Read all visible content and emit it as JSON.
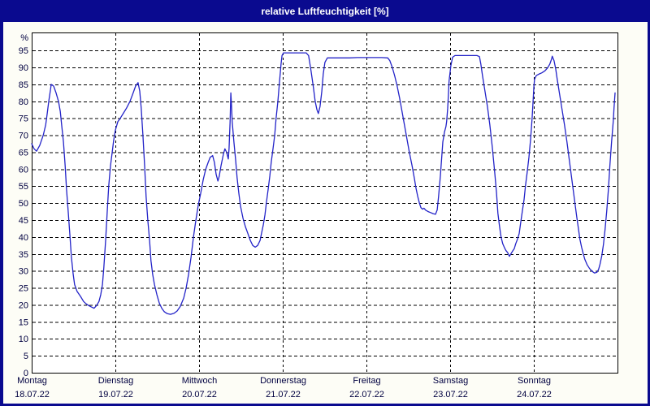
{
  "window": {
    "title": "relative Luftfeuchtigkeit [%]"
  },
  "colors": {
    "titlebar_bg": "#0a0a8f",
    "titlebar_text": "#ffffff",
    "window_border": "#0a0a8f",
    "content_bg": "#fdfdf6",
    "plot_bg": "#ffffff",
    "frame": "#000000",
    "grid": "#000000",
    "line": "#2323c8",
    "label": "#000040"
  },
  "chart_data": {
    "type": "line",
    "title": "relative Luftfeuchtigkeit [%]",
    "ylabel": "%",
    "ylim": [
      0,
      100.3
    ],
    "y_ticks": [
      0,
      5,
      10,
      15,
      20,
      25,
      30,
      35,
      40,
      45,
      50,
      55,
      60,
      65,
      70,
      75,
      80,
      85,
      90,
      95
    ],
    "x_hours_range": [
      0,
      168
    ],
    "grid": "dashed",
    "legend_position": "none",
    "days": [
      {
        "name": "Montag",
        "date": "18.07.22"
      },
      {
        "name": "Dienstag",
        "date": "19.07.22"
      },
      {
        "name": "Mittwoch",
        "date": "20.07.22"
      },
      {
        "name": "Donnerstag",
        "date": "21.07.22"
      },
      {
        "name": "Freitag",
        "date": "22.07.22"
      },
      {
        "name": "Samstag",
        "date": "23.07.22"
      },
      {
        "name": "Sonntag",
        "date": "24.07.22"
      }
    ],
    "series": [
      {
        "name": "relative Luftfeuchtigkeit",
        "points": [
          [
            0.0,
            67.5
          ],
          [
            0.7,
            66
          ],
          [
            1.4,
            65.3
          ],
          [
            2.3,
            67
          ],
          [
            3.3,
            70
          ],
          [
            4.0,
            73
          ],
          [
            4.4,
            76
          ],
          [
            4.9,
            80
          ],
          [
            5.4,
            83.5
          ],
          [
            5.6,
            85
          ],
          [
            6.3,
            84.5
          ],
          [
            7.0,
            82.5
          ],
          [
            7.7,
            80
          ],
          [
            8.2,
            77
          ],
          [
            8.6,
            73
          ],
          [
            9.1,
            68
          ],
          [
            9.6,
            61
          ],
          [
            10.0,
            54
          ],
          [
            10.5,
            47
          ],
          [
            11.0,
            40
          ],
          [
            11.4,
            34
          ],
          [
            11.9,
            29
          ],
          [
            12.3,
            26
          ],
          [
            13.0,
            24
          ],
          [
            14.0,
            22.5
          ],
          [
            14.9,
            21
          ],
          [
            15.6,
            20.3
          ],
          [
            16.5,
            19.7
          ],
          [
            17.5,
            19.2
          ],
          [
            17.9,
            19
          ],
          [
            18.6,
            19.8
          ],
          [
            19.3,
            21
          ],
          [
            19.8,
            23
          ],
          [
            20.3,
            26
          ],
          [
            20.7,
            31
          ],
          [
            21.2,
            39
          ],
          [
            21.7,
            48
          ],
          [
            22.1,
            55
          ],
          [
            22.6,
            61
          ],
          [
            23.1,
            65
          ],
          [
            23.5,
            68.5
          ],
          [
            24.0,
            71.5
          ],
          [
            24.7,
            74
          ],
          [
            25.4,
            75
          ],
          [
            26.3,
            76.5
          ],
          [
            27.2,
            78
          ],
          [
            28.2,
            80
          ],
          [
            29.1,
            82.5
          ],
          [
            29.8,
            84.5
          ],
          [
            30.5,
            85.5
          ],
          [
            31.0,
            83
          ],
          [
            31.4,
            78
          ],
          [
            31.9,
            70
          ],
          [
            32.4,
            61
          ],
          [
            32.8,
            52
          ],
          [
            33.3,
            45
          ],
          [
            33.8,
            39
          ],
          [
            34.2,
            33
          ],
          [
            34.7,
            29
          ],
          [
            35.2,
            26
          ],
          [
            35.9,
            23
          ],
          [
            36.6,
            20.5
          ],
          [
            37.3,
            19
          ],
          [
            38.0,
            18
          ],
          [
            38.9,
            17.4
          ],
          [
            39.8,
            17.2
          ],
          [
            40.8,
            17.5
          ],
          [
            41.7,
            18.2
          ],
          [
            42.6,
            19.5
          ],
          [
            43.6,
            22
          ],
          [
            44.3,
            25
          ],
          [
            45.0,
            29
          ],
          [
            45.7,
            34
          ],
          [
            46.4,
            40
          ],
          [
            47.1,
            45
          ],
          [
            47.8,
            49.5
          ],
          [
            48.5,
            53
          ],
          [
            49.2,
            57
          ],
          [
            49.9,
            60
          ],
          [
            50.6,
            62
          ],
          [
            51.2,
            63.5
          ],
          [
            51.9,
            64
          ],
          [
            52.4,
            62
          ],
          [
            52.9,
            58.5
          ],
          [
            53.4,
            56.5
          ],
          [
            53.8,
            58
          ],
          [
            54.3,
            61
          ],
          [
            55.0,
            64.5
          ],
          [
            55.4,
            66
          ],
          [
            55.9,
            65
          ],
          [
            56.4,
            63
          ],
          [
            56.6,
            66
          ],
          [
            56.9,
            74
          ],
          [
            57.1,
            82.5
          ],
          [
            57.3,
            79
          ],
          [
            57.5,
            74
          ],
          [
            58.0,
            68
          ],
          [
            58.5,
            62.5
          ],
          [
            58.9,
            57.5
          ],
          [
            59.4,
            53
          ],
          [
            59.9,
            49
          ],
          [
            60.6,
            45.5
          ],
          [
            61.3,
            43
          ],
          [
            62.0,
            41
          ],
          [
            62.7,
            39
          ],
          [
            63.4,
            37.5
          ],
          [
            64.1,
            37
          ],
          [
            64.8,
            37.5
          ],
          [
            65.5,
            39
          ],
          [
            65.9,
            41
          ],
          [
            66.4,
            43.5
          ],
          [
            66.9,
            46.5
          ],
          [
            67.3,
            50
          ],
          [
            67.8,
            54
          ],
          [
            68.3,
            58
          ],
          [
            68.7,
            62
          ],
          [
            69.2,
            66
          ],
          [
            69.7,
            70
          ],
          [
            70.1,
            75
          ],
          [
            70.6,
            80
          ],
          [
            71.1,
            86
          ],
          [
            71.5,
            91
          ],
          [
            71.8,
            93.5
          ],
          [
            72.2,
            94.3
          ],
          [
            73.6,
            94.3
          ],
          [
            75.3,
            94.3
          ],
          [
            77.1,
            94.3
          ],
          [
            78.7,
            94.3
          ],
          [
            79.4,
            93.5
          ],
          [
            80.1,
            89
          ],
          [
            80.8,
            84
          ],
          [
            81.3,
            80
          ],
          [
            81.8,
            77.5
          ],
          [
            82.2,
            76.4
          ],
          [
            82.7,
            78.5
          ],
          [
            83.2,
            83
          ],
          [
            83.6,
            88
          ],
          [
            84.1,
            91.5
          ],
          [
            84.8,
            92.8
          ],
          [
            86.4,
            92.8
          ],
          [
            88.8,
            92.8
          ],
          [
            91.1,
            92.8
          ],
          [
            93.4,
            92.9
          ],
          [
            95.8,
            92.9
          ],
          [
            98.1,
            92.9
          ],
          [
            100.4,
            92.9
          ],
          [
            102.1,
            92.8
          ],
          [
            102.7,
            92
          ],
          [
            103.4,
            90
          ],
          [
            104.1,
            87.5
          ],
          [
            104.8,
            84.5
          ],
          [
            105.5,
            81
          ],
          [
            106.2,
            77
          ],
          [
            106.9,
            73
          ],
          [
            107.6,
            69
          ],
          [
            108.3,
            65
          ],
          [
            109.1,
            61
          ],
          [
            109.8,
            57
          ],
          [
            110.2,
            54.5
          ],
          [
            110.7,
            52
          ],
          [
            111.2,
            50
          ],
          [
            111.6,
            48.7
          ],
          [
            112.1,
            48.2
          ],
          [
            112.5,
            48.5
          ],
          [
            113.0,
            47.9
          ],
          [
            113.7,
            47.5
          ],
          [
            114.4,
            47.2
          ],
          [
            115.1,
            46.9
          ],
          [
            115.8,
            46.7
          ],
          [
            116.3,
            48
          ],
          [
            116.7,
            52
          ],
          [
            117.2,
            58
          ],
          [
            117.7,
            65
          ],
          [
            117.9,
            68
          ],
          [
            118.4,
            71
          ],
          [
            118.8,
            72.5
          ],
          [
            119.0,
            74
          ],
          [
            119.3,
            78
          ],
          [
            119.5,
            82
          ],
          [
            119.7,
            86
          ],
          [
            120.2,
            90.5
          ],
          [
            120.7,
            93
          ],
          [
            121.4,
            93.5
          ],
          [
            122.8,
            93.5
          ],
          [
            124.4,
            93.5
          ],
          [
            126.0,
            93.5
          ],
          [
            127.7,
            93.5
          ],
          [
            128.4,
            93.2
          ],
          [
            128.8,
            91
          ],
          [
            129.3,
            87.5
          ],
          [
            130.0,
            83
          ],
          [
            130.7,
            78.5
          ],
          [
            131.4,
            73
          ],
          [
            132.1,
            66.5
          ],
          [
            132.8,
            59
          ],
          [
            133.3,
            53
          ],
          [
            133.7,
            47
          ],
          [
            134.2,
            43
          ],
          [
            134.6,
            40
          ],
          [
            135.1,
            38
          ],
          [
            135.6,
            36.8
          ],
          [
            136.0,
            36
          ],
          [
            136.5,
            35.4
          ],
          [
            137.0,
            34.3
          ],
          [
            137.4,
            35
          ],
          [
            137.9,
            35.8
          ],
          [
            138.4,
            36.6
          ],
          [
            138.8,
            38
          ],
          [
            139.3,
            39.3
          ],
          [
            139.8,
            41
          ],
          [
            140.2,
            44
          ],
          [
            140.7,
            47.5
          ],
          [
            141.2,
            51
          ],
          [
            141.6,
            55
          ],
          [
            142.1,
            59
          ],
          [
            142.6,
            63.5
          ],
          [
            143.1,
            69
          ],
          [
            143.5,
            75
          ],
          [
            143.8,
            80
          ],
          [
            144.0,
            84
          ],
          [
            144.2,
            86.5
          ],
          [
            144.7,
            87.6
          ],
          [
            145.4,
            88
          ],
          [
            146.3,
            88.4
          ],
          [
            147.2,
            89
          ],
          [
            147.9,
            89.8
          ],
          [
            148.6,
            91
          ],
          [
            149.1,
            92.5
          ],
          [
            149.3,
            93.3
          ],
          [
            149.8,
            92
          ],
          [
            150.3,
            89.5
          ],
          [
            150.7,
            86.5
          ],
          [
            151.4,
            82
          ],
          [
            152.1,
            77.5
          ],
          [
            152.8,
            73
          ],
          [
            153.5,
            68
          ],
          [
            154.2,
            62.5
          ],
          [
            154.9,
            57
          ],
          [
            155.6,
            51.5
          ],
          [
            156.3,
            46
          ],
          [
            156.8,
            42.5
          ],
          [
            157.2,
            39.5
          ],
          [
            157.7,
            37
          ],
          [
            158.2,
            35
          ],
          [
            158.6,
            33.5
          ],
          [
            159.3,
            31.8
          ],
          [
            160.0,
            30.7
          ],
          [
            160.7,
            29.9
          ],
          [
            161.4,
            29.4
          ],
          [
            162.1,
            29.6
          ],
          [
            162.6,
            30.5
          ],
          [
            163.0,
            32
          ],
          [
            163.5,
            34.5
          ],
          [
            164.0,
            38
          ],
          [
            164.4,
            42
          ],
          [
            164.9,
            47.5
          ],
          [
            165.4,
            54
          ],
          [
            165.8,
            61
          ],
          [
            166.3,
            68
          ],
          [
            166.8,
            74.5
          ],
          [
            167.0,
            78
          ],
          [
            167.3,
            82.5
          ]
        ]
      }
    ]
  }
}
